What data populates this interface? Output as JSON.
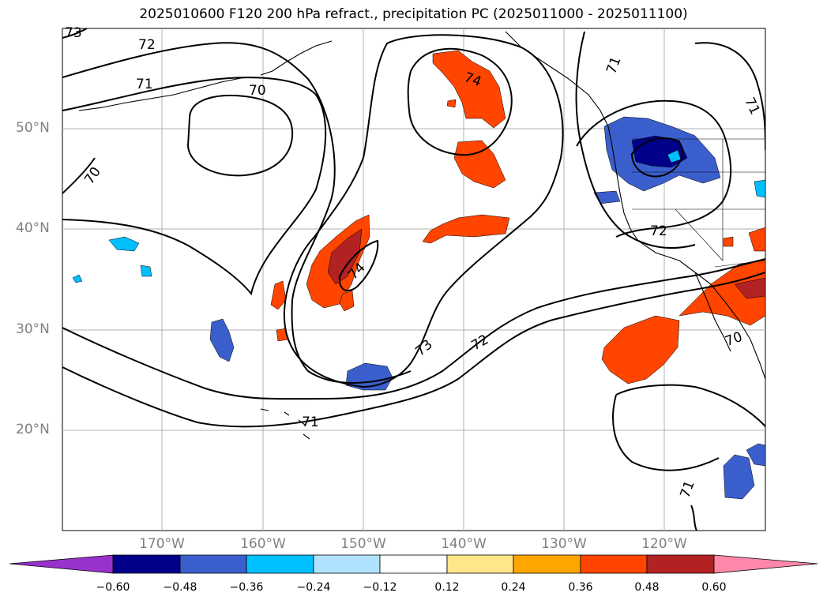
{
  "title": "2025010600 F120 200 hPa refract., precipitation PC (2025011000 - 2025011100)",
  "map": {
    "lat_labels": [
      "50°N",
      "40°N",
      "30°N",
      "20°N"
    ],
    "lon_labels": [
      "170°W",
      "160°W",
      "150°W",
      "140°W",
      "130°W",
      "120°W"
    ],
    "contour_labels": [
      "73",
      "72",
      "71",
      "70",
      "70",
      "74",
      "74",
      "73",
      "72",
      "71",
      "71",
      "71",
      "72",
      "70",
      "71"
    ]
  },
  "colorbar": {
    "ticks": [
      "−0.60",
      "−0.48",
      "−0.36",
      "−0.24",
      "−0.12",
      "0.12",
      "0.24",
      "0.36",
      "0.48",
      "0.60"
    ],
    "colors": [
      "#9932cc",
      "#00008b",
      "#3a5fcd",
      "#00bfff",
      "#b0e2ff",
      "#ffffff",
      "#ffe68a",
      "#ffa500",
      "#ff4500",
      "#b22222",
      "#ff88aa"
    ]
  }
}
